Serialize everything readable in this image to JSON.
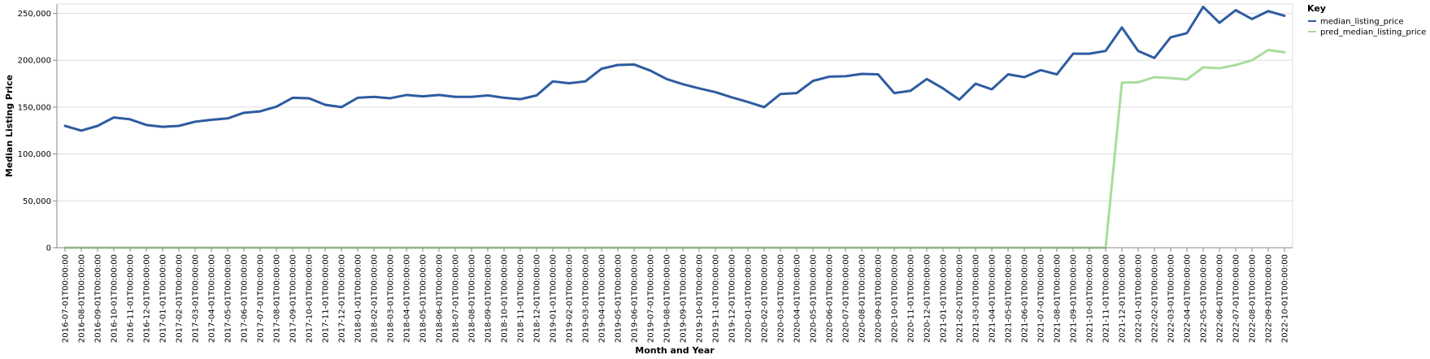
{
  "chart_data": {
    "type": "line",
    "xlabel": "Month and Year",
    "ylabel": "Median Listing Price",
    "ylim": [
      0,
      260000
    ],
    "yticks": [
      0,
      50000,
      100000,
      150000,
      200000,
      250000
    ],
    "ytick_labels": [
      "0",
      "50,000",
      "100,000",
      "150,000",
      "200,000",
      "250,000"
    ],
    "grid": true,
    "legend": {
      "title": "Key",
      "position": "top-right"
    },
    "x": [
      "2016-07-01T00:00:00",
      "2016-08-01T00:00:00",
      "2016-09-01T00:00:00",
      "2016-10-01T00:00:00",
      "2016-11-01T00:00:00",
      "2016-12-01T00:00:00",
      "2017-01-01T00:00:00",
      "2017-02-01T00:00:00",
      "2017-03-01T00:00:00",
      "2017-04-01T00:00:00",
      "2017-05-01T00:00:00",
      "2017-06-01T00:00:00",
      "2017-07-01T00:00:00",
      "2017-08-01T00:00:00",
      "2017-09-01T00:00:00",
      "2017-10-01T00:00:00",
      "2017-11-01T00:00:00",
      "2017-12-01T00:00:00",
      "2018-01-01T00:00:00",
      "2018-02-01T00:00:00",
      "2018-03-01T00:00:00",
      "2018-04-01T00:00:00",
      "2018-05-01T00:00:00",
      "2018-06-01T00:00:00",
      "2018-07-01T00:00:00",
      "2018-08-01T00:00:00",
      "2018-09-01T00:00:00",
      "2018-10-01T00:00:00",
      "2018-11-01T00:00:00",
      "2018-12-01T00:00:00",
      "2019-01-01T00:00:00",
      "2019-02-01T00:00:00",
      "2019-03-01T00:00:00",
      "2019-04-01T00:00:00",
      "2019-05-01T00:00:00",
      "2019-06-01T00:00:00",
      "2019-07-01T00:00:00",
      "2019-08-01T00:00:00",
      "2019-09-01T00:00:00",
      "2019-10-01T00:00:00",
      "2019-11-01T00:00:00",
      "2019-12-01T00:00:00",
      "2020-01-01T00:00:00",
      "2020-02-01T00:00:00",
      "2020-03-01T00:00:00",
      "2020-04-01T00:00:00",
      "2020-05-01T00:00:00",
      "2020-06-01T00:00:00",
      "2020-07-01T00:00:00",
      "2020-08-01T00:00:00",
      "2020-09-01T00:00:00",
      "2020-10-01T00:00:00",
      "2020-11-01T00:00:00",
      "2020-12-01T00:00:00",
      "2021-01-01T00:00:00",
      "2021-02-01T00:00:00",
      "2021-03-01T00:00:00",
      "2021-04-01T00:00:00",
      "2021-05-01T00:00:00",
      "2021-06-01T00:00:00",
      "2021-07-01T00:00:00",
      "2021-08-01T00:00:00",
      "2021-09-01T00:00:00",
      "2021-10-01T00:00:00",
      "2021-11-01T00:00:00",
      "2021-12-01T00:00:00",
      "2022-01-01T00:00:00",
      "2022-02-01T00:00:00",
      "2022-03-01T00:00:00",
      "2022-04-01T00:00:00",
      "2022-05-01T00:00:00",
      "2022-06-01T00:00:00",
      "2022-07-01T00:00:00",
      "2022-08-01T00:00:00",
      "2022-09-01T00:00:00",
      "2022-10-01T00:00:00"
    ],
    "series": [
      {
        "name": "median_listing_price",
        "color": "#2d5ca0",
        "values": [
          130000,
          125000,
          130000,
          139000,
          137000,
          131000,
          129000,
          130000,
          134500,
          136500,
          138000,
          144000,
          145500,
          150500,
          160000,
          159500,
          152500,
          150000,
          160000,
          161000,
          159500,
          163000,
          161500,
          163000,
          161000,
          161000,
          162500,
          160000,
          158500,
          162500,
          177500,
          175500,
          177500,
          191000,
          195000,
          195500,
          189000,
          180000,
          174500,
          170000,
          166000,
          160500,
          155500,
          150000,
          164000,
          165000,
          178000,
          182500,
          183000,
          185500,
          185000,
          165000,
          167500,
          180000,
          170000,
          158000,
          175000,
          169000,
          185000,
          182000,
          189500,
          185000,
          207000,
          207000,
          210000,
          235000,
          210000,
          202500,
          224500,
          229000,
          257000,
          240000,
          253500,
          244000,
          252500,
          247500
        ]
      },
      {
        "name": "pred_median_listing_price",
        "color": "#a8dd9c",
        "values": [
          0,
          0,
          0,
          0,
          0,
          0,
          0,
          0,
          0,
          0,
          0,
          0,
          0,
          0,
          0,
          0,
          0,
          0,
          0,
          0,
          0,
          0,
          0,
          0,
          0,
          0,
          0,
          0,
          0,
          0,
          0,
          0,
          0,
          0,
          0,
          0,
          0,
          0,
          0,
          0,
          0,
          0,
          0,
          0,
          0,
          0,
          0,
          0,
          0,
          0,
          0,
          0,
          0,
          0,
          0,
          0,
          0,
          0,
          0,
          0,
          0,
          0,
          0,
          0,
          0,
          176000,
          176500,
          182000,
          181000,
          179500,
          192500,
          191500,
          195000,
          200000,
          211000,
          208500
        ]
      }
    ]
  }
}
